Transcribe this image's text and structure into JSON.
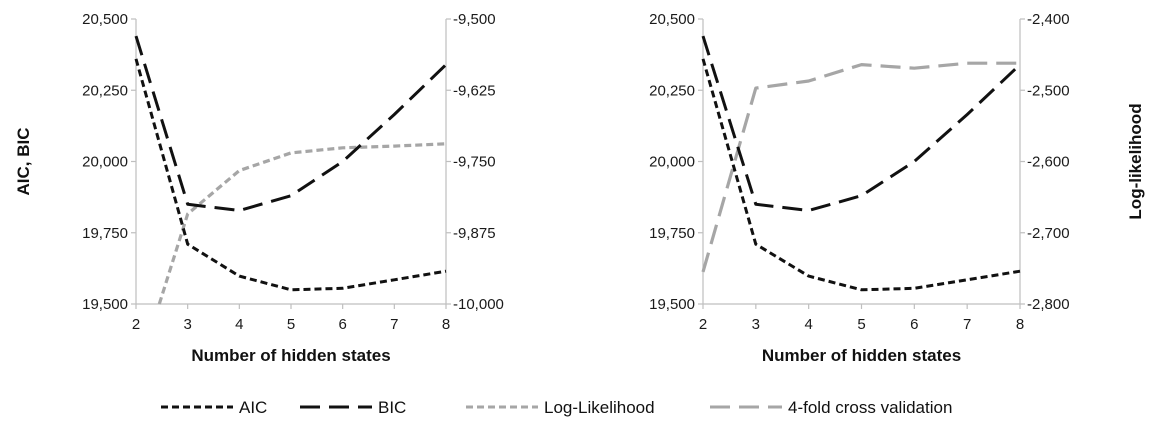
{
  "chart_data": [
    {
      "type": "line",
      "title": "",
      "xlabel": "Number of hidden states",
      "ylabel": "AIC, BIC",
      "y2label": "",
      "x": [
        2,
        3,
        4,
        5,
        6,
        7,
        8
      ],
      "x_ticks": [
        "2",
        "3",
        "4",
        "5",
        "6",
        "7",
        "8"
      ],
      "ylim": [
        19500,
        20500
      ],
      "y_ticks": [
        "20,500",
        "20,250",
        "20,000",
        "19,750",
        "19,500"
      ],
      "y2lim": [
        -10000,
        -9500
      ],
      "y2_ticks": [
        "-9,500",
        "-9,625",
        "-9,750",
        "-9,875",
        "-10,000"
      ],
      "series": [
        {
          "name": "AIC",
          "axis": "left",
          "style": "short-dash",
          "color": "#111111",
          "values": [
            20360,
            19710,
            19598,
            19550,
            19555,
            19585,
            19615
          ]
        },
        {
          "name": "BIC",
          "axis": "left",
          "style": "long-dash",
          "color": "#111111",
          "values": [
            20440,
            19850,
            19828,
            19880,
            20000,
            20165,
            20340
          ]
        },
        {
          "name": "Log-Likelihood",
          "axis": "right",
          "style": "short-dash",
          "color": "#a6a6a6",
          "x": [
            2.45,
            3,
            4,
            5,
            6,
            7,
            8
          ],
          "values": [
            -10000,
            -9842,
            -9766,
            -9735,
            -9726,
            -9723,
            -9719
          ]
        }
      ]
    },
    {
      "type": "line",
      "title": "",
      "xlabel": "Number of hidden states",
      "ylabel": "",
      "y2label": "Log-likelihood",
      "x": [
        2,
        3,
        4,
        5,
        6,
        7,
        8
      ],
      "x_ticks": [
        "2",
        "3",
        "4",
        "5",
        "6",
        "7",
        "8"
      ],
      "ylim": [
        19500,
        20500
      ],
      "y_ticks": [
        "20,500",
        "20,250",
        "20,000",
        "19,750",
        "19,500"
      ],
      "y2lim": [
        -2800,
        -2400
      ],
      "y2_ticks": [
        "-2,400",
        "-2,500",
        "-2,600",
        "-2,700",
        "-2,800"
      ],
      "series": [
        {
          "name": "AIC",
          "axis": "left",
          "style": "short-dash",
          "color": "#111111",
          "values": [
            20360,
            19710,
            19598,
            19550,
            19555,
            19585,
            19615
          ]
        },
        {
          "name": "BIC",
          "axis": "left",
          "style": "long-dash",
          "color": "#111111",
          "values": [
            20440,
            19850,
            19828,
            19880,
            20000,
            20165,
            20340
          ]
        },
        {
          "name": "4-fold cross validation",
          "axis": "right",
          "style": "long-dash",
          "color": "#a6a6a6",
          "values": [
            -2755,
            -2497,
            -2487,
            -2464,
            -2469,
            -2462,
            -2462
          ]
        }
      ]
    }
  ],
  "legend": [
    {
      "label": "AIC",
      "style": "short-dash",
      "color": "#111111"
    },
    {
      "label": "BIC",
      "style": "long-dash",
      "color": "#111111"
    },
    {
      "label": "Log-Likelihood",
      "style": "short-dash",
      "color": "#a6a6a6"
    },
    {
      "label": "4-fold cross validation",
      "style": "long-dash",
      "color": "#a6a6a6"
    }
  ]
}
